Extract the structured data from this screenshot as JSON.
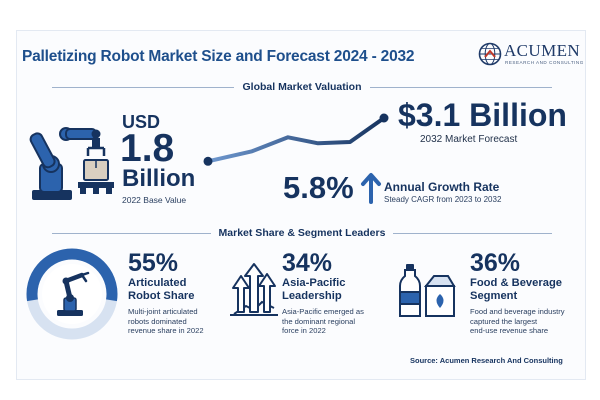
{
  "header": {
    "title": "Palletizing Robot Market Size and Forecast 2024 - 2032",
    "logo_name": "ACUMEN",
    "logo_tagline": "RESEARCH AND CONSULTING"
  },
  "valuation": {
    "section_title": "Global Market Valuation",
    "base_currency": "USD",
    "base_value": "1.8",
    "base_unit": "Billion",
    "base_caption": "2022 Base Value",
    "forecast_value": "$3.1 Billion",
    "forecast_caption": "2032 Market Forecast",
    "cagr_value": "5.8%",
    "cagr_label": "Annual Growth Rate",
    "cagr_caption": "Steady CAGR from 2023 to 2032"
  },
  "segments": {
    "section_title": "Market Share & Segment Leaders",
    "items": [
      {
        "percent": "55%",
        "title_line1": "Articulated",
        "title_line2": "Robot Share",
        "desc_line1": "Multi-joint articulated",
        "desc_line2": "robots dominated",
        "desc_line3": "revenue share in 2022",
        "icon": "robot-arm-icon"
      },
      {
        "percent": "34%",
        "title_line1": "Asia-Pacific",
        "title_line2": "Leadership",
        "desc_line1": "Asia-Pacific emerged as",
        "desc_line2": "the dominant regional",
        "desc_line3": "force in 2022",
        "icon": "growth-arrows-icon"
      },
      {
        "percent": "36%",
        "title_line1": "Food & Beverage",
        "title_line2": "Segment",
        "desc_line1": "Food and beverage industry",
        "desc_line2": "captured the largest",
        "desc_line3": "end-use revenue share",
        "icon": "bottle-carton-icon"
      }
    ]
  },
  "source": "Source: Acumen Research And Consulting",
  "chart_data": {
    "type": "line",
    "x": [
      "2022",
      "2032"
    ],
    "series": [
      {
        "values": [
          1.8,
          3.1
        ]
      }
    ],
    "ylabel": "USD Billion",
    "cagr_percent": 5.8,
    "articulated_robot_share_percent": 55
  },
  "colors": {
    "primary": "#16335f",
    "accent": "#2c63ad",
    "light_accent": "#b7cbe6",
    "ring_track": "#d7e2f1"
  }
}
